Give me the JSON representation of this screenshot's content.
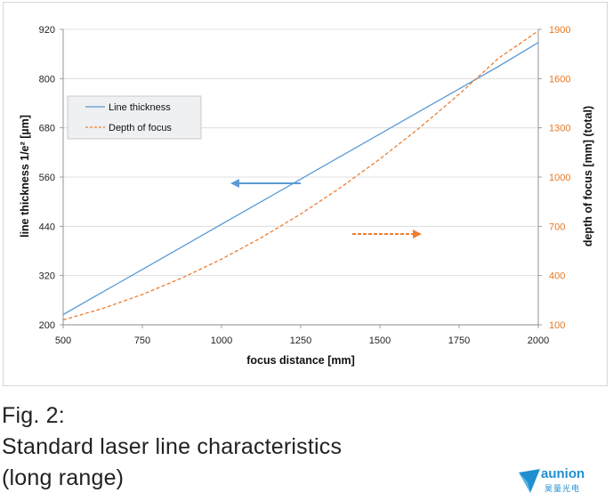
{
  "chart_data": {
    "type": "line",
    "x": [
      500,
      625,
      750,
      875,
      1000,
      1125,
      1250,
      1375,
      1500,
      1625,
      1750,
      1875,
      2000
    ],
    "xlabel": "focus distance [mm]",
    "xlim": [
      500,
      2000
    ],
    "xticks": [
      "500",
      "750",
      "1000",
      "1250",
      "1500",
      "1750",
      "2000"
    ],
    "ylabel_left": "line thickness  1/e² [µm]",
    "ylim_left": [
      200,
      920
    ],
    "yticks_left": [
      "200",
      "320",
      "440",
      "560",
      "680",
      "800",
      "920"
    ],
    "ylabel_right": "depth of focus [mm] (total)",
    "ylim_right": [
      100,
      1900
    ],
    "yticks_right": [
      "100",
      "400",
      "700",
      "1000",
      "1300",
      "1600",
      "1900"
    ],
    "grid": "horizontal",
    "legend_position": "top-left",
    "series": [
      {
        "name": "Line thickness",
        "axis": "left",
        "style": "solid",
        "color": "#5b9bd5",
        "values": [
          225,
          280,
          335,
          390,
          445,
          500,
          555,
          610,
          665,
          720,
          775,
          830,
          888
        ]
      },
      {
        "name": "Depth of focus",
        "axis": "right",
        "style": "dashed",
        "color": "#ed7d31",
        "values": [
          130,
          200,
          285,
          385,
          500,
          630,
          775,
          935,
          1110,
          1300,
          1505,
          1725,
          1890
        ]
      }
    ],
    "annotations": [
      {
        "type": "arrow",
        "direction": "left",
        "points_to": "left axis",
        "color": "#5b9bd5"
      },
      {
        "type": "arrow",
        "direction": "right",
        "points_to": "right axis",
        "color": "#ed7d31"
      }
    ]
  },
  "caption": {
    "line1": "Fig. 2:",
    "line2": "Standard laser line characteristics",
    "line3": "(long range)"
  },
  "logo": {
    "name": "aunion",
    "subtitle": "昊量光电",
    "color": "#1f8fd0"
  }
}
